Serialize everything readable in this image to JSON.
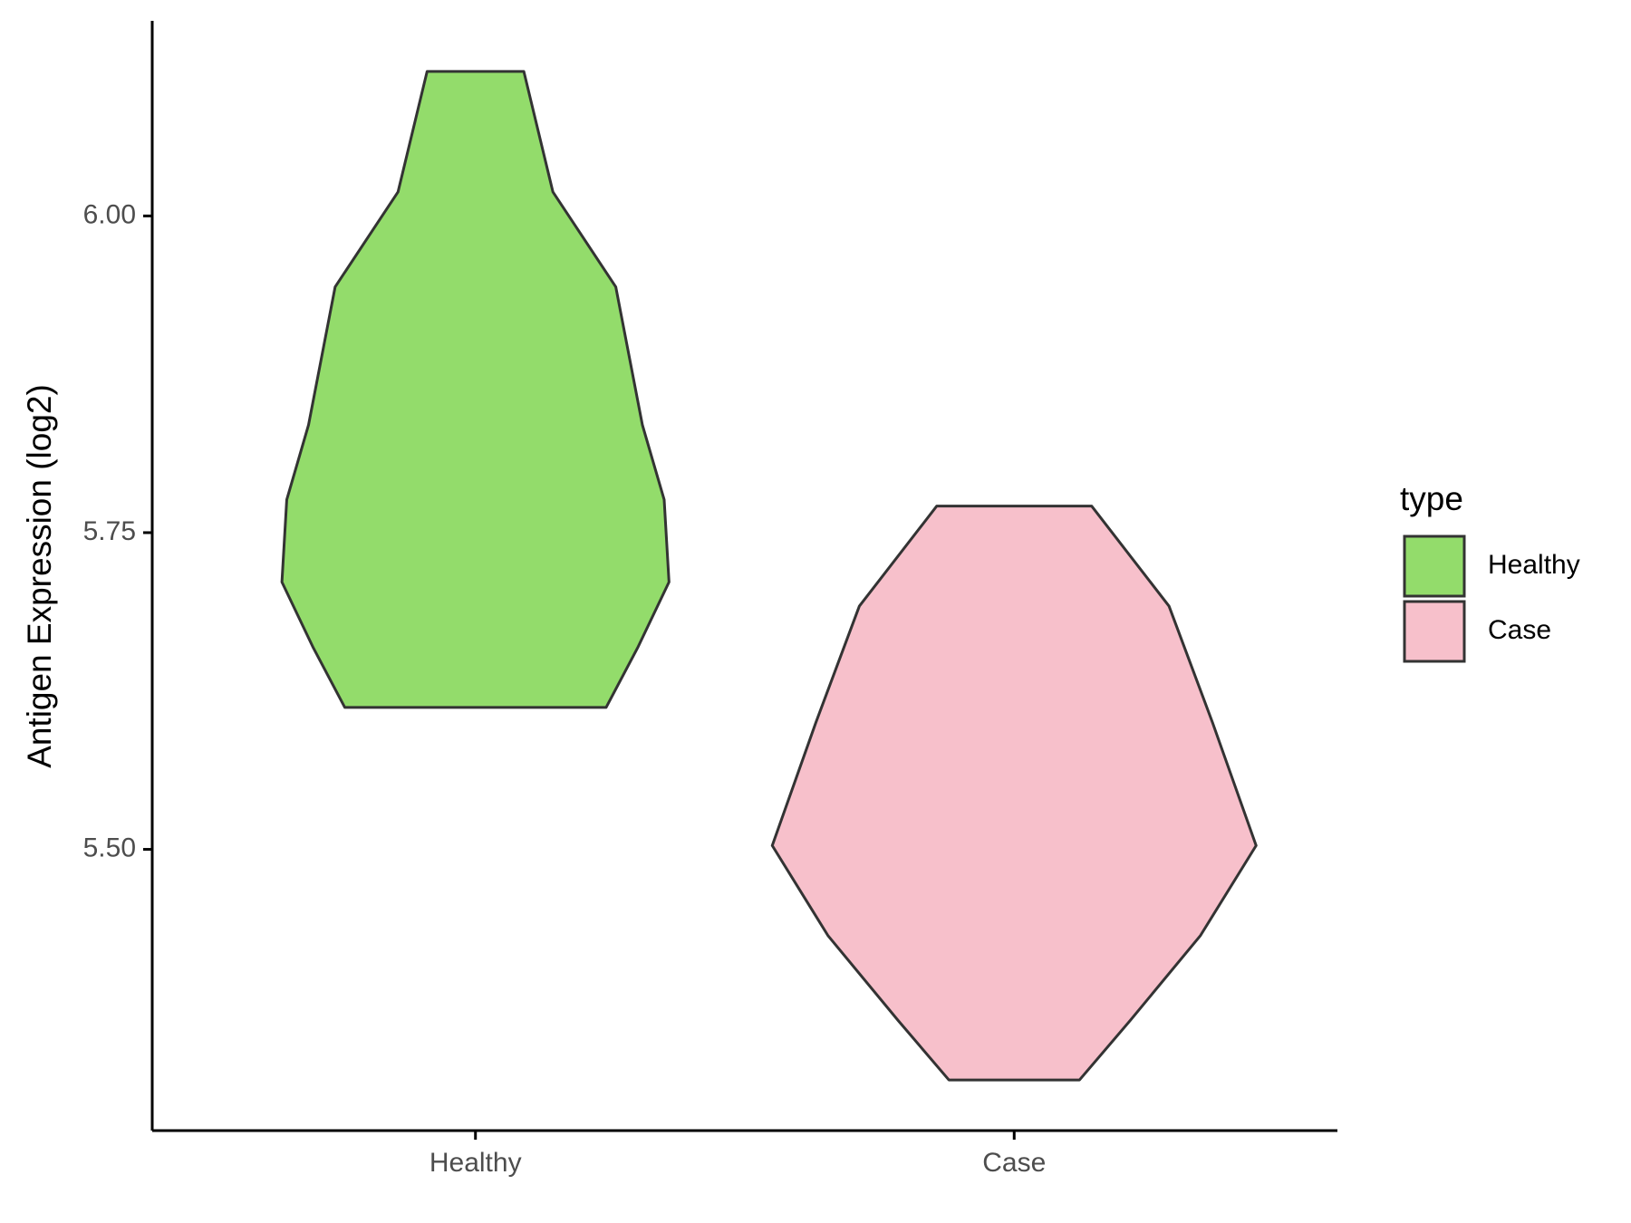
{
  "chart_data": {
    "type": "violin",
    "y_label": "Antigen Expression (log2)",
    "legend_title": "type",
    "categories": [
      "Healthy",
      "Case"
    ],
    "series": [
      {
        "name": "Healthy",
        "color": "#93dc6b",
        "y": [
          6.114,
          6.019,
          5.944,
          5.835,
          5.776,
          5.711,
          5.659,
          5.612
        ],
        "density": [
          0.2,
          0.32,
          0.58,
          0.69,
          0.78,
          0.8,
          0.67,
          0.54
        ]
      },
      {
        "name": "Case",
        "color": "#f7c0cb",
        "y": [
          5.771,
          5.692,
          5.6,
          5.503,
          5.432,
          5.365,
          5.318
        ],
        "density": [
          0.32,
          0.64,
          0.82,
          1.0,
          0.77,
          0.48,
          0.27
        ]
      }
    ],
    "ylim": [
      5.278,
      6.154
    ],
    "yticks": [
      {
        "value": 5.5,
        "label": "5.50"
      },
      {
        "value": 5.75,
        "label": "5.75"
      },
      {
        "value": 6.0,
        "label": "6.00"
      }
    ],
    "legend_position": "right"
  }
}
